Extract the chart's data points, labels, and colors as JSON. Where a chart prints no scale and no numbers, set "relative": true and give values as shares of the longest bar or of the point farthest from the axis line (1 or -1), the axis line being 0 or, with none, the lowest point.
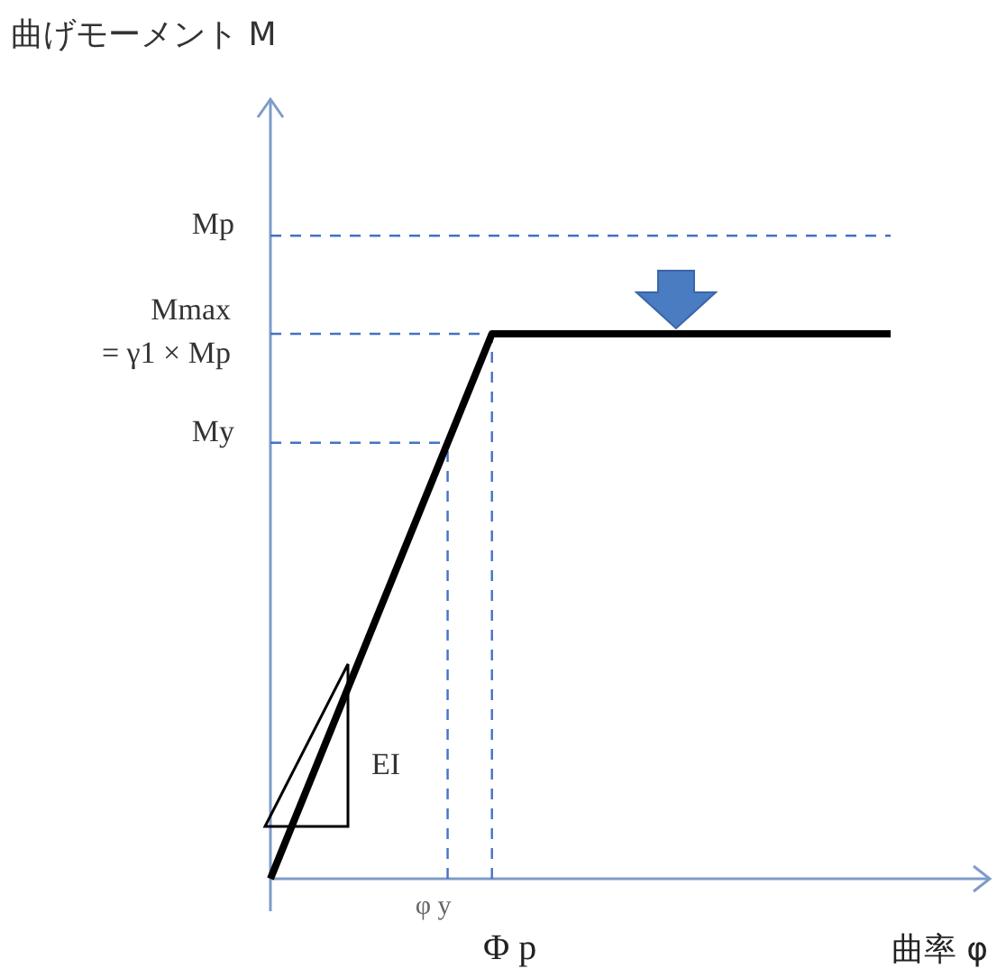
{
  "chart_data": {
    "type": "line",
    "relative": true,
    "categories": [
      null,
      null,
      null,
      null,
      "φ y",
      "Φ p",
      null,
      null,
      null,
      null,
      null,
      null,
      null,
      null,
      null
    ],
    "values": [
      0,
      0.2,
      0.4,
      0.6,
      0.8,
      1,
      1,
      1,
      1,
      1,
      1,
      1,
      1,
      1,
      1
    ],
    "color": "#000000",
    "line_style": "solid",
    "xlabel": "曲率 φ",
    "ref_lines": [
      {
        "axis": "y",
        "value": 1.18,
        "label": "Mp",
        "color": "#4472c4",
        "line_style": "dashed"
      },
      {
        "axis": "y",
        "value": 1,
        "label": "Mmax\n= γ1 × Mp",
        "color": "#4472c4",
        "line_style": "dashed"
      },
      {
        "axis": "y",
        "value": 0.8,
        "label": "My",
        "color": "#4472c4",
        "line_style": "dashed"
      }
    ],
    "annotations": [
      "曲げモーメント M",
      "EI"
    ]
  }
}
